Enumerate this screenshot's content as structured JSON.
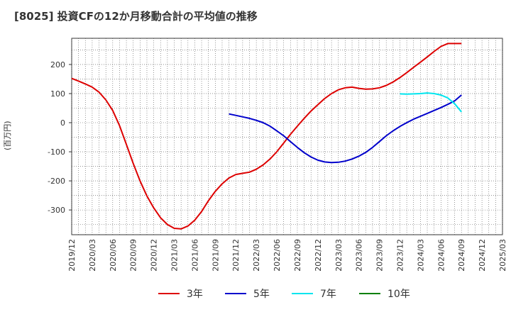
{
  "title": "[8025]  投資CFの12か月移動合計の平均値の推移",
  "chart_data": {
    "type": "line",
    "title": "[8025]  投資CFの12か月移動合計の平均値の推移",
    "ylabel": "(百万円)",
    "xlabel": "",
    "ylim": [
      -385,
      290
    ],
    "yticks": [
      200,
      100,
      0,
      -100,
      -200,
      -300
    ],
    "xticks": [
      "2019/12",
      "2020/03",
      "2020/06",
      "2020/09",
      "2020/12",
      "2021/03",
      "2021/06",
      "2021/09",
      "2021/12",
      "2022/03",
      "2022/06",
      "2022/09",
      "2022/12",
      "2023/03",
      "2023/06",
      "2023/09",
      "2023/12",
      "2024/03",
      "2024/06",
      "2024/09",
      "2024/12",
      "2025/03"
    ],
    "grid": true,
    "legend_position": "bottom",
    "series": [
      {
        "name": "3年",
        "color": "#dd0000",
        "x": [
          "2019/12",
          "2020/01",
          "2020/02",
          "2020/03",
          "2020/04",
          "2020/05",
          "2020/06",
          "2020/07",
          "2020/08",
          "2020/09",
          "2020/10",
          "2020/11",
          "2020/12",
          "2021/01",
          "2021/02",
          "2021/03",
          "2021/04",
          "2021/05",
          "2021/06",
          "2021/07",
          "2021/08",
          "2021/09",
          "2021/10",
          "2021/11",
          "2021/12",
          "2022/01",
          "2022/02",
          "2022/03",
          "2022/04",
          "2022/05",
          "2022/06",
          "2022/07",
          "2022/08",
          "2022/09",
          "2022/10",
          "2022/11",
          "2022/12",
          "2023/01",
          "2023/02",
          "2023/03",
          "2023/04",
          "2023/05",
          "2023/06",
          "2023/07",
          "2023/08",
          "2023/09",
          "2023/10",
          "2023/11",
          "2023/12",
          "2024/01",
          "2024/02",
          "2024/03",
          "2024/04",
          "2024/05",
          "2024/06",
          "2024/07",
          "2024/08",
          "2024/09"
        ],
        "values": [
          152,
          143,
          133,
          122,
          105,
          78,
          42,
          -10,
          -75,
          -140,
          -200,
          -252,
          -293,
          -327,
          -350,
          -363,
          -365,
          -355,
          -335,
          -305,
          -268,
          -236,
          -210,
          -190,
          -178,
          -174,
          -170,
          -160,
          -145,
          -125,
          -100,
          -70,
          -40,
          -12,
          15,
          40,
          62,
          83,
          100,
          113,
          120,
          122,
          118,
          115,
          116,
          120,
          128,
          140,
          155,
          172,
          190,
          208,
          226,
          245,
          262,
          272,
          272,
          272
        ],
        "values_count_note": ""
      },
      {
        "name": "5年",
        "color": "#0000cc",
        "x": [
          "2021/11",
          "2021/12",
          "2022/01",
          "2022/02",
          "2022/03",
          "2022/04",
          "2022/05",
          "2022/06",
          "2022/07",
          "2022/08",
          "2022/09",
          "2022/10",
          "2022/11",
          "2022/12",
          "2023/01",
          "2023/02",
          "2023/03",
          "2023/04",
          "2023/05",
          "2023/06",
          "2023/07",
          "2023/08",
          "2023/09",
          "2023/10",
          "2023/11",
          "2023/12",
          "2024/01",
          "2024/02",
          "2024/03",
          "2024/04",
          "2024/05",
          "2024/06",
          "2024/07",
          "2024/08",
          "2024/09"
        ],
        "values": [
          30,
          25,
          20,
          15,
          8,
          0,
          -12,
          -28,
          -45,
          -65,
          -85,
          -103,
          -118,
          -129,
          -135,
          -137,
          -136,
          -132,
          -125,
          -115,
          -102,
          -85,
          -65,
          -45,
          -28,
          -13,
          0,
          12,
          22,
          32,
          42,
          52,
          63,
          75,
          95
        ]
      },
      {
        "name": "7年",
        "color": "#00e5ee",
        "x": [
          "2023/12",
          "2024/01",
          "2024/02",
          "2024/03",
          "2024/04",
          "2024/05",
          "2024/06",
          "2024/07",
          "2024/08",
          "2024/09"
        ],
        "values": [
          99,
          98,
          99,
          100,
          102,
          100,
          95,
          85,
          65,
          37
        ]
      },
      {
        "name": "10年",
        "color": "#008000",
        "x": [],
        "values": []
      }
    ]
  }
}
